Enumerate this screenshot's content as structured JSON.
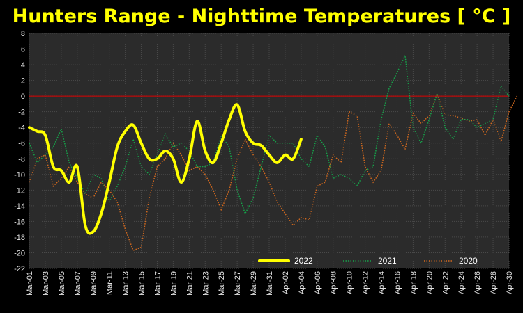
{
  "chart_data": {
    "type": "line",
    "title": "Hunters Range - Nighttime Temperatures [ °C ]",
    "xlabel": "",
    "ylabel": "",
    "ylim": [
      -22,
      8
    ],
    "yticks": [
      8,
      6,
      4,
      2,
      0,
      -2,
      -4,
      -6,
      -8,
      -10,
      -12,
      -14,
      -16,
      -18,
      -20,
      -22
    ],
    "xtick_labels": [
      "Mar-01",
      "Mar-03",
      "Mar-05",
      "Mar-07",
      "Mar-09",
      "Mar-11",
      "Mar-13",
      "Mar-15",
      "Mar-17",
      "Mar-19",
      "Mar-21",
      "Mar-23",
      "Mar-25",
      "Mar-27",
      "Mar-29",
      "Mar-31",
      "Apr-02",
      "Apr-04",
      "Apr-06",
      "Apr-08",
      "Apr-10",
      "Apr-12",
      "Apr-14",
      "Apr-16",
      "Apr-18",
      "Apr-20",
      "Apr-22",
      "Apr-24",
      "Apr-26",
      "Apr-28",
      "Apr-30"
    ],
    "reference_line": 0,
    "legend_position": "bottom-right",
    "grid": true,
    "series": [
      {
        "name": "2022",
        "color": "#ffff00",
        "style": "solid-smooth",
        "values": [
          -4,
          -4.5,
          -5,
          -9,
          -9.5,
          -11,
          -9,
          -16.5,
          -17.3,
          -15,
          -11,
          -6.5,
          -4.5,
          -3.7,
          -6,
          -8,
          -8,
          -7,
          -8,
          -11,
          -8,
          -3.2,
          -7,
          -8.5,
          -6,
          -3,
          -1.1,
          -4.5,
          -6,
          -6.3,
          -7.5,
          -8.5,
          -7.5,
          -8,
          -5.5
        ]
      },
      {
        "name": "2021",
        "color": "#16a34a",
        "style": "dotted",
        "values": [
          -6,
          -8.5,
          -7.5,
          -6.5,
          -4.2,
          -8.5,
          -10.5,
          -12.5,
          -10,
          -10.5,
          -13.5,
          -11.5,
          -9,
          -5.5,
          -9,
          -10,
          -7.5,
          -4.8,
          -6.5,
          -6,
          -7,
          -9,
          -9,
          -8.5,
          -5,
          -6.5,
          -12,
          -15,
          -13,
          -9,
          -5,
          -6,
          -6,
          -6,
          -8,
          -9,
          -5,
          -6.5,
          -10.5,
          -10,
          -10.5,
          -11.5,
          -9.5,
          -9,
          -3,
          1,
          3,
          5.2,
          -4,
          -6,
          -3,
          0.3,
          -4,
          -5.5,
          -3,
          -3,
          -4,
          -3.5,
          -3,
          1.3,
          0
        ]
      },
      {
        "name": "2020",
        "color": "#d2691e",
        "style": "dotted",
        "values": [
          -11,
          -8,
          -7.5,
          -11.5,
          -10.5,
          -9,
          -11,
          -12.5,
          -13,
          -11,
          -12,
          -13.5,
          -17,
          -19.7,
          -19.3,
          -13,
          -9,
          -8,
          -6,
          -7.5,
          -9.5,
          -9,
          -10,
          -12,
          -14.5,
          -12,
          -8,
          -5.5,
          -7.5,
          -9,
          -11,
          -13.5,
          -15,
          -16.5,
          -15.5,
          -15.8,
          -11.5,
          -11,
          -7.5,
          -8.5,
          -2,
          -2.5,
          -9,
          -11,
          -9.5,
          -3.5,
          -5,
          -6.8,
          -2.2,
          -3.5,
          -2.5,
          0.3,
          -2.4,
          -2.5,
          -2.8,
          -3.2,
          -3,
          -5,
          -3,
          -5.8,
          -2,
          0
        ]
      }
    ]
  }
}
